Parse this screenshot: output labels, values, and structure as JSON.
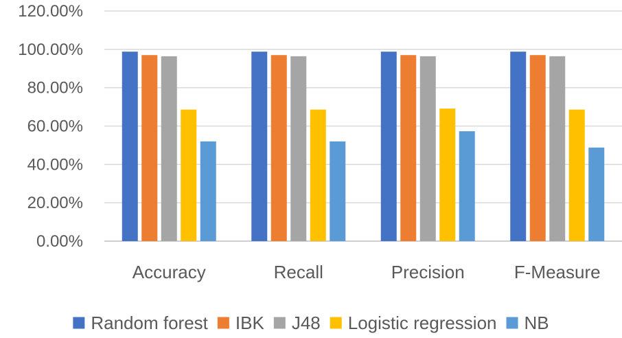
{
  "chart_data": {
    "type": "bar",
    "title": "",
    "xlabel": "",
    "ylabel": "",
    "categories": [
      "Accuracy",
      "Recall",
      "Precision",
      "F-Measure"
    ],
    "series": [
      {
        "name": "Random forest",
        "color": "#4472C4",
        "values": [
          98.8,
          98.8,
          98.8,
          98.8
        ]
      },
      {
        "name": "IBK",
        "color": "#ED7D31",
        "values": [
          97.0,
          97.0,
          97.0,
          97.0
        ]
      },
      {
        "name": "J48",
        "color": "#A5A5A5",
        "values": [
          96.4,
          96.4,
          96.4,
          96.4
        ]
      },
      {
        "name": "Logistic regression",
        "color": "#FFC000",
        "values": [
          68.6,
          68.6,
          69.1,
          68.6
        ]
      },
      {
        "name": "NB",
        "color": "#5B9BD5",
        "values": [
          52.0,
          52.0,
          57.3,
          48.8
        ]
      }
    ],
    "y_ticks": [
      "0.00%",
      "20.00%",
      "40.00%",
      "60.00%",
      "80.00%",
      "100.00%",
      "120.00%"
    ],
    "ylim": [
      0,
      120
    ],
    "grid": true,
    "legend_position": "bottom",
    "colors": {
      "gridline": "#D9D9D9",
      "text": "#595959"
    }
  }
}
